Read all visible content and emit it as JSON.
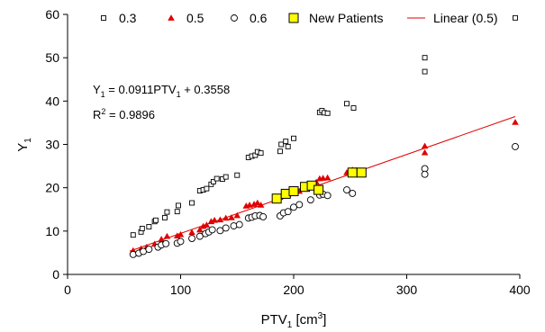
{
  "chart_data": {
    "type": "scatter",
    "xlabel": "PTV",
    "xlabel_sub": "1",
    "xlabel_unit_prefix": " [cm",
    "xlabel_unit_sup": "3",
    "xlabel_unit_suffix": "]",
    "ylabel": "Y",
    "ylabel_sub": "1",
    "xlim": [
      0,
      400
    ],
    "ylim": [
      0,
      60
    ],
    "xticks": [
      0,
      100,
      200,
      300,
      400
    ],
    "yticks": [
      0,
      10,
      20,
      30,
      40,
      50,
      60
    ],
    "grid": false,
    "legend_position": "top",
    "annotation_equation": {
      "y": "Y",
      "y_sub": "1",
      "mid": " = 0.0911PTV",
      "x_sub": "1",
      "tail": " + 0.3558"
    },
    "annotation_r2": {
      "r": "R",
      "sup": "2",
      "tail": " = 0.9896"
    },
    "colors": {
      "series_03": "#000000",
      "series_05": "#e00000",
      "series_06": "#000000",
      "new_patients_fill": "#ffff00",
      "trendline": "#e00000"
    },
    "series": [
      {
        "name": "0.3",
        "marker": "square-open",
        "points": [
          [
            58,
            9.1
          ],
          [
            65,
            9.8
          ],
          [
            66,
            10.6
          ],
          [
            72,
            11.0
          ],
          [
            77,
            12.2
          ],
          [
            78,
            12.5
          ],
          [
            86,
            13.1
          ],
          [
            88,
            14.4
          ],
          [
            97,
            14.5
          ],
          [
            98,
            15.9
          ],
          [
            110,
            16.5
          ],
          [
            117,
            19.3
          ],
          [
            120,
            19.5
          ],
          [
            123,
            19.8
          ],
          [
            127,
            20.8
          ],
          [
            129,
            21.4
          ],
          [
            132,
            22.1
          ],
          [
            137,
            22.0
          ],
          [
            140,
            22.5
          ],
          [
            150,
            22.9
          ],
          [
            160,
            27.0
          ],
          [
            163,
            27.3
          ],
          [
            166,
            27.5
          ],
          [
            168,
            28.3
          ],
          [
            171,
            28.0
          ],
          [
            188,
            28.4
          ],
          [
            189,
            30.0
          ],
          [
            193,
            30.7
          ],
          [
            195,
            29.5
          ],
          [
            200,
            31.4
          ],
          [
            223,
            37.4
          ],
          [
            225,
            37.8
          ],
          [
            227,
            37.3
          ],
          [
            230,
            37.2
          ],
          [
            247,
            39.4
          ],
          [
            253,
            38.4
          ],
          [
            316,
            50.0
          ],
          [
            316,
            46.8
          ],
          [
            396,
            59.2
          ]
        ]
      },
      {
        "name": "0.5",
        "marker": "triangle",
        "points": [
          [
            58,
            5.5
          ],
          [
            65,
            5.9
          ],
          [
            70,
            6.3
          ],
          [
            77,
            7.0
          ],
          [
            83,
            8.1
          ],
          [
            88,
            8.8
          ],
          [
            97,
            8.9
          ],
          [
            100,
            9.2
          ],
          [
            110,
            9.7
          ],
          [
            117,
            10.3
          ],
          [
            120,
            11.1
          ],
          [
            123,
            11.4
          ],
          [
            127,
            12.2
          ],
          [
            130,
            12.5
          ],
          [
            135,
            12.6
          ],
          [
            140,
            13.0
          ],
          [
            145,
            13.1
          ],
          [
            150,
            13.6
          ],
          [
            158,
            15.8
          ],
          [
            161,
            16.0
          ],
          [
            165,
            16.2
          ],
          [
            168,
            16.5
          ],
          [
            171,
            16.0
          ],
          [
            188,
            17.8
          ],
          [
            190,
            18.4
          ],
          [
            195,
            18.4
          ],
          [
            200,
            19.0
          ],
          [
            205,
            19.2
          ],
          [
            210,
            19.7
          ],
          [
            215,
            20.5
          ],
          [
            220,
            21.3
          ],
          [
            223,
            22.1
          ],
          [
            226,
            22.2
          ],
          [
            230,
            22.3
          ],
          [
            247,
            23.5
          ],
          [
            252,
            24.1
          ],
          [
            255,
            24.0
          ],
          [
            316,
            29.6
          ],
          [
            316,
            28.1
          ],
          [
            396,
            35.1
          ]
        ]
      },
      {
        "name": "0.6",
        "marker": "circle-open",
        "points": [
          [
            58,
            4.6
          ],
          [
            63,
            4.9
          ],
          [
            67,
            5.3
          ],
          [
            72,
            5.8
          ],
          [
            80,
            6.3
          ],
          [
            83,
            6.8
          ],
          [
            87,
            7.1
          ],
          [
            97,
            7.2
          ],
          [
            100,
            7.6
          ],
          [
            110,
            8.3
          ],
          [
            117,
            8.8
          ],
          [
            122,
            9.4
          ],
          [
            125,
            9.8
          ],
          [
            128,
            10.3
          ],
          [
            135,
            10.1
          ],
          [
            140,
            10.7
          ],
          [
            147,
            11.2
          ],
          [
            152,
            11.5
          ],
          [
            160,
            13.0
          ],
          [
            163,
            13.2
          ],
          [
            166,
            13.5
          ],
          [
            170,
            13.6
          ],
          [
            173,
            13.3
          ],
          [
            188,
            13.5
          ],
          [
            191,
            14.2
          ],
          [
            195,
            14.5
          ],
          [
            200,
            15.5
          ],
          [
            205,
            16.1
          ],
          [
            215,
            17.2
          ],
          [
            223,
            18.3
          ],
          [
            226,
            18.5
          ],
          [
            230,
            18.2
          ],
          [
            247,
            19.5
          ],
          [
            252,
            18.7
          ],
          [
            316,
            24.4
          ],
          [
            316,
            23.1
          ],
          [
            396,
            29.5
          ]
        ]
      },
      {
        "name": "New Patients",
        "marker": "square-filled",
        "points": [
          [
            185,
            17.5
          ],
          [
            193,
            18.6
          ],
          [
            200,
            19.2
          ],
          [
            210,
            20.2
          ],
          [
            216,
            20.5
          ],
          [
            222,
            19.5
          ],
          [
            252,
            23.5
          ],
          [
            260,
            23.5
          ]
        ]
      }
    ],
    "trendline": {
      "name": "Linear (0.5)",
      "slope": 0.0911,
      "intercept": 0.3558,
      "x_range": [
        55,
        396
      ]
    }
  }
}
